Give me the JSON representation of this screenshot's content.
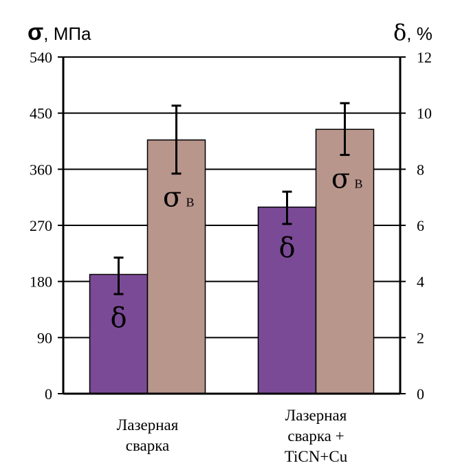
{
  "chart_data": {
    "type": "bar",
    "categories": [
      [
        "Лазерная",
        "сварка"
      ],
      [
        "Лазерная",
        "сварка +",
        "TiCN+Cu"
      ]
    ],
    "left_axis": {
      "symbol": "σ",
      "unit": ", МПа",
      "range": [
        0,
        540
      ],
      "ticks": [
        "0",
        "90",
        "180",
        "270",
        "360",
        "450",
        "540"
      ]
    },
    "right_axis": {
      "symbol": "δ",
      "unit": ", %",
      "range": [
        0,
        12
      ],
      "ticks": [
        "0",
        "2",
        "4",
        "6",
        "8",
        "10",
        "12"
      ]
    },
    "series": [
      {
        "label_symbol": "δ",
        "label_sub": "",
        "axis": "right",
        "color": "#7b4a96",
        "values": [
          4.25,
          6.65
        ],
        "error_low": [
          3.55,
          6.05
        ],
        "error_high": [
          4.85,
          7.2
        ]
      },
      {
        "label_symbol": "σ",
        "label_sub": "В",
        "axis": "left",
        "color": "#b9968c",
        "values": [
          407,
          424
        ],
        "error_low": [
          353,
          383
        ],
        "error_high": [
          462,
          466
        ]
      }
    ],
    "grid": true,
    "legend": "none"
  }
}
